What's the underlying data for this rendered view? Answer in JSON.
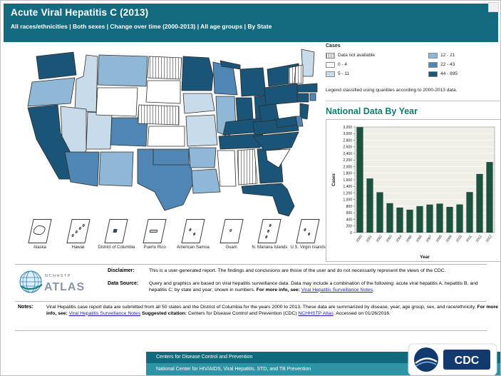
{
  "header": {
    "title": "Acute Viral Hepatitis  C (2013)",
    "filters": "All races/ethnicities | Both sexes | Change over time (2000-2013) | All age groups | By State"
  },
  "legend": {
    "title": "Cases",
    "items": [
      {
        "label": "Data not available",
        "type": "hatch"
      },
      {
        "label": "0 - 4",
        "color": "#ffffff"
      },
      {
        "label": "5 - 11",
        "color": "#c8dbea"
      },
      {
        "label": "12 - 21",
        "color": "#8fb8d6"
      },
      {
        "label": "22 - 43",
        "color": "#4f86b4"
      },
      {
        "label": "44 - 895",
        "color": "#1a5578"
      }
    ],
    "note": "Legend classified using quantiles according to 2000-2013 data."
  },
  "map": {
    "state_categories": {
      "WA": 5,
      "OR": 3,
      "CA": 5,
      "NV": 2,
      "ID": 2,
      "MT": 3,
      "WY": 1,
      "UT": 2,
      "CO": 4,
      "AZ": 4,
      "NM": 3,
      "ND": 0,
      "SD": 1,
      "NE": 0,
      "KS": 1,
      "OK": 4,
      "TX": 4,
      "MN": 5,
      "IA": 2,
      "MO": 2,
      "AR": 3,
      "LA": 3,
      "WI": 4,
      "IL": 3,
      "MS": 1,
      "AL": 0,
      "TN": 5,
      "KY": 5,
      "IN": 5,
      "OH": 5,
      "MI": 5,
      "GA": 5,
      "FL": 5,
      "SC": 1,
      "NC": 5,
      "VA": 5,
      "WV": 5,
      "PA": 5,
      "NY": 5,
      "ME": 2,
      "VT": 0,
      "NH": 0,
      "MA": 5,
      "CT": 5,
      "RI": 4,
      "NJ": 5,
      "DE": 4,
      "MD": 5
    },
    "insets": [
      {
        "label": "Alaska",
        "category": 1,
        "shape": "alaska"
      },
      {
        "label": "Hawaii",
        "category": 2,
        "shape": "islands4"
      },
      {
        "label": "District of Columbia",
        "category": 5,
        "shape": "square"
      },
      {
        "label": "Puerto Rico",
        "category": 2,
        "shape": "bar"
      },
      {
        "label": "American Samoa",
        "category": 0,
        "shape": "islands2"
      },
      {
        "label": "Guam",
        "category": 1,
        "shape": "island1"
      },
      {
        "label": "N. Mariana Islands",
        "category": 0,
        "shape": "islands3"
      },
      {
        "label": "U.S. Virgin Islands",
        "category": 0,
        "shape": "islands2"
      }
    ]
  },
  "chart_data": {
    "type": "bar",
    "title": "National Data By Year",
    "xlabel": "Year",
    "ylabel": "Cases",
    "categories": [
      "2000",
      "2001",
      "2002",
      "2003",
      "2004",
      "2005",
      "2006",
      "2007",
      "2008",
      "2009",
      "2010",
      "2011",
      "2012",
      "2013"
    ],
    "values": [
      3197,
      1640,
      1223,
      891,
      758,
      694,
      802,
      849,
      878,
      781,
      853,
      1229,
      1778,
      2138
    ],
    "ylim": [
      0,
      3200
    ],
    "ytick_step": 200,
    "grid": true,
    "legend_position": "none",
    "bar_color": "#1d5240"
  },
  "notes": {
    "disclaimer_label": "Disclaimer:",
    "disclaimer_text": "This is a user-generated report. The findings and conclusions are those of the user and do not necessarily represent the views of the CDC.",
    "data_source_label": "Data Source:",
    "data_source_text": "Query and graphics are based on viral hepatitis surveillance data. Data may include a combination of the following: acute viral hepatitis A, hepatitis B, and hepatitis C; by state and year; shown in numbers.",
    "more_info_label": "For more info, see:",
    "surveillance_link": "Viral Hepatitis Surveillance Notes",
    "period": ".",
    "notes_label": "Notes:",
    "notes_text": "Viral Hepatitis case report data are submitted from all 50 states and the District of Columbia for the years 2000 to 2013. These data are summarized by disease, year, age group, sex, and race/ethnicity.",
    "suggested_citation_label": "Suggested citation:",
    "citation_text": "Centers for Disease Control and Prevention (CDC)",
    "atlas_link": "NCHHSTP Atlas",
    "accessed_text": ". Accessed on 01/26/2016."
  },
  "logos": {
    "nchhstp": "NCHHSTP",
    "atlas": "ATLAS",
    "cdc": "CDC"
  },
  "footer": {
    "line1": "Centers for Disease Control and Prevention",
    "line2": "National Center for HIV/AIDS, Viral Hepatitis, STD, and TB Prevention"
  },
  "colors": {
    "header_teal": "#146b80",
    "footer_teal_dark": "#0e6a7c",
    "footer_teal_light": "#2e93a4",
    "chart_heading_teal": "#0c7e6d",
    "link_blue": "#1a1ab3"
  }
}
